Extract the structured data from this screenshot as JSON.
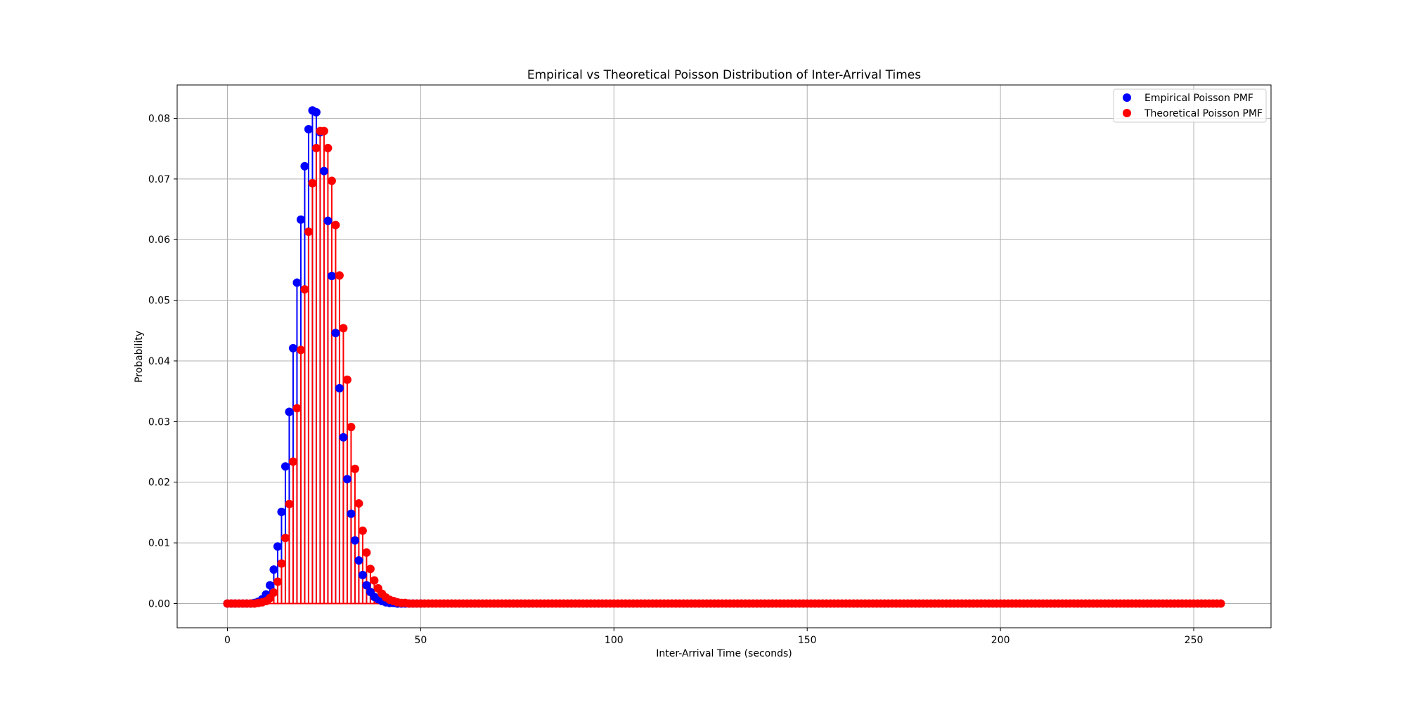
{
  "chart_data": {
    "type": "stem",
    "title": "Empirical vs Theoretical Poisson Distribution of Inter-Arrival Times",
    "xlabel": "Inter-Arrival Time (seconds)",
    "ylabel": "Probability",
    "xlim": [
      -13,
      270
    ],
    "ylim": [
      -0.004,
      0.0855
    ],
    "x_ticks": [
      0,
      50,
      100,
      150,
      200,
      250
    ],
    "x_tick_labels": [
      "0",
      "50",
      "100",
      "150",
      "200",
      "250"
    ],
    "y_ticks": [
      0.0,
      0.01,
      0.02,
      0.03,
      0.04,
      0.05,
      0.06,
      0.07,
      0.08
    ],
    "y_tick_labels": [
      "0.00",
      "0.01",
      "0.02",
      "0.03",
      "0.04",
      "0.05",
      "0.06",
      "0.07",
      "0.08"
    ],
    "grid": true,
    "legend_position": "top-right",
    "x_range_of_series": [
      0,
      257
    ],
    "series": [
      {
        "name": "Empirical Poisson PMF",
        "color": "#0000ff",
        "x": [
          0,
          1,
          2,
          3,
          4,
          5,
          6,
          7,
          8,
          9,
          10,
          11,
          12,
          13,
          14,
          15,
          16,
          17,
          18,
          19,
          20,
          21,
          22,
          23,
          24,
          25,
          26,
          27,
          28,
          29,
          30,
          31,
          32,
          33,
          34,
          35,
          36,
          37,
          38,
          39,
          40,
          41,
          42,
          43,
          44,
          45,
          46,
          47,
          48,
          49,
          50
        ],
        "values": [
          0,
          0,
          0,
          0,
          0,
          0,
          0,
          0.0001,
          0.0003,
          0.0007,
          0.0015,
          0.003,
          0.0056,
          0.0094,
          0.0151,
          0.0226,
          0.0316,
          0.0421,
          0.0529,
          0.0633,
          0.0721,
          0.0782,
          0.0813,
          0.081,
          0.0777,
          0.0713,
          0.0631,
          0.054,
          0.0446,
          0.0355,
          0.0274,
          0.0205,
          0.0148,
          0.0104,
          0.0071,
          0.0047,
          0.003,
          0.0019,
          0.0011,
          0.0007,
          0.0004,
          0.0002,
          0.0001,
          0.0001,
          0,
          0,
          0,
          0,
          0,
          0,
          0
        ]
      },
      {
        "name": "Theoretical Poisson PMF",
        "color": "#ff0000",
        "x_start": 0,
        "x_end": 257,
        "values": [
          0,
          0,
          0,
          0,
          0,
          0,
          0,
          0,
          0.0001,
          0.0002,
          0.0004,
          0.0009,
          0.0018,
          0.0036,
          0.0066,
          0.0108,
          0.0164,
          0.0234,
          0.0322,
          0.0418,
          0.0518,
          0.0613,
          0.0693,
          0.0751,
          0.0779,
          0.0779,
          0.0751,
          0.0697,
          0.0624,
          0.0541,
          0.0454,
          0.0369,
          0.0291,
          0.0222,
          0.0165,
          0.012,
          0.0084,
          0.0057,
          0.0038,
          0.0025,
          0.0016,
          0.001,
          0.0006,
          0.0004,
          0.0002,
          0.0001,
          0.0001
        ],
        "values_after_last_listed": 0
      }
    ]
  }
}
